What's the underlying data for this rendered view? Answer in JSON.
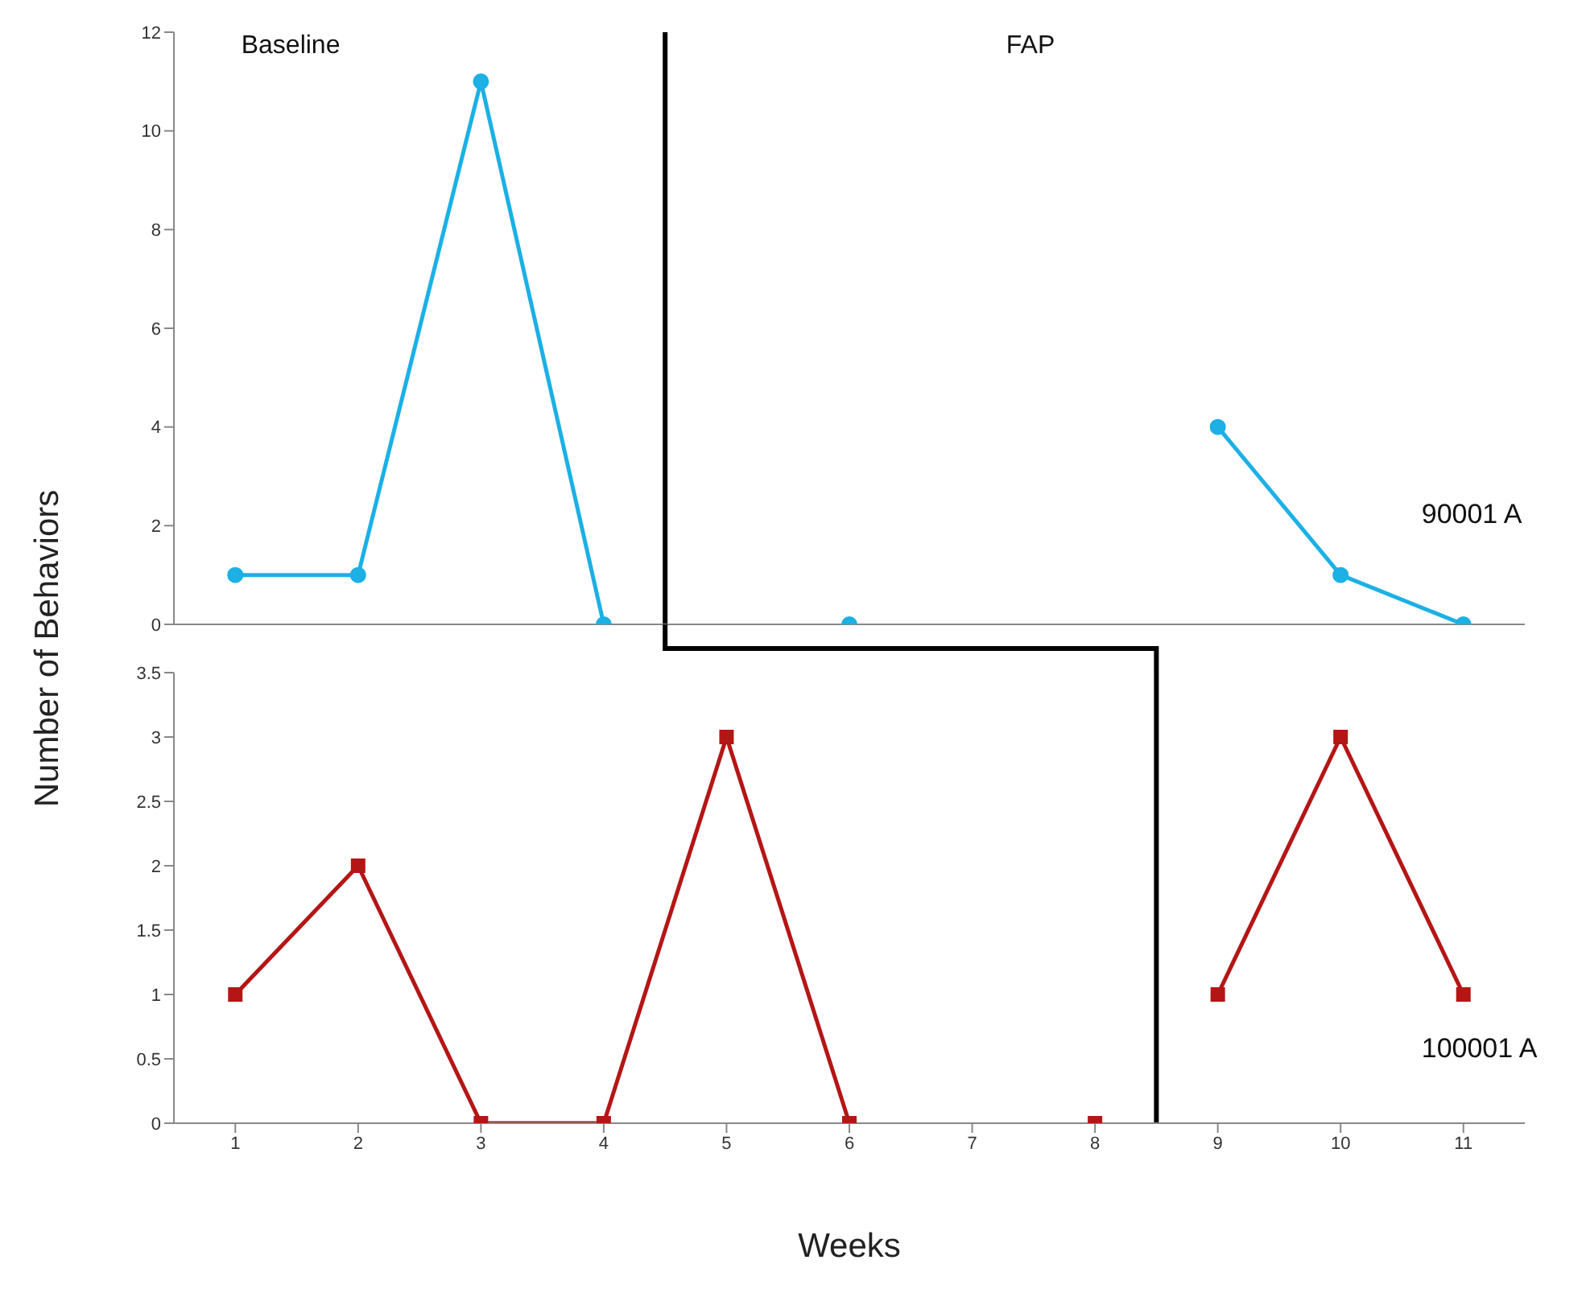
{
  "chart_data": [
    {
      "type": "line",
      "ylabel": "Number of Behaviors",
      "x": [
        1,
        2,
        3,
        4,
        5,
        6,
        7,
        8,
        9,
        10,
        11
      ],
      "xlim": [
        0.5,
        11.5
      ],
      "xticks": [
        1,
        2,
        3,
        4,
        5,
        6,
        7,
        8,
        9,
        10,
        11
      ],
      "ylim": [
        0,
        12
      ],
      "yticks": [
        0,
        2,
        4,
        6,
        8,
        10,
        12
      ],
      "tick_labels": "y",
      "marker": "circle",
      "series": [
        {
          "name": "90001 A",
          "color": "#1cb0e4",
          "values": [
            1,
            1,
            11,
            0,
            null,
            0,
            null,
            null,
            4,
            1,
            0
          ]
        }
      ],
      "ref_lines": [
        {
          "axis": "x",
          "value": 4.5,
          "color": "#000000"
        }
      ],
      "annotations": [
        "Baseline",
        "FAP"
      ]
    },
    {
      "type": "line",
      "xlabel": "Weeks",
      "x": [
        1,
        2,
        3,
        4,
        5,
        6,
        7,
        8,
        9,
        10,
        11
      ],
      "xlim": [
        0.5,
        11.5
      ],
      "xticks": [
        1,
        2,
        3,
        4,
        5,
        6,
        7,
        8,
        9,
        10,
        11
      ],
      "ylim": [
        0,
        3.5
      ],
      "yticks": [
        0,
        0.5,
        1,
        1.5,
        2,
        2.5,
        3,
        3.5
      ],
      "marker": "square",
      "series": [
        {
          "color": "#b41616",
          "values": [
            1,
            2,
            0,
            0,
            3,
            0,
            null,
            0,
            null,
            null,
            null
          ]
        },
        {
          "name": "100001 A",
          "color": "#b41616",
          "values": [
            null,
            null,
            null,
            null,
            null,
            null,
            null,
            null,
            1,
            3,
            1
          ]
        }
      ],
      "ref_lines": [
        {
          "axis": "x",
          "value": 8.5,
          "color": "#000000"
        }
      ]
    }
  ]
}
